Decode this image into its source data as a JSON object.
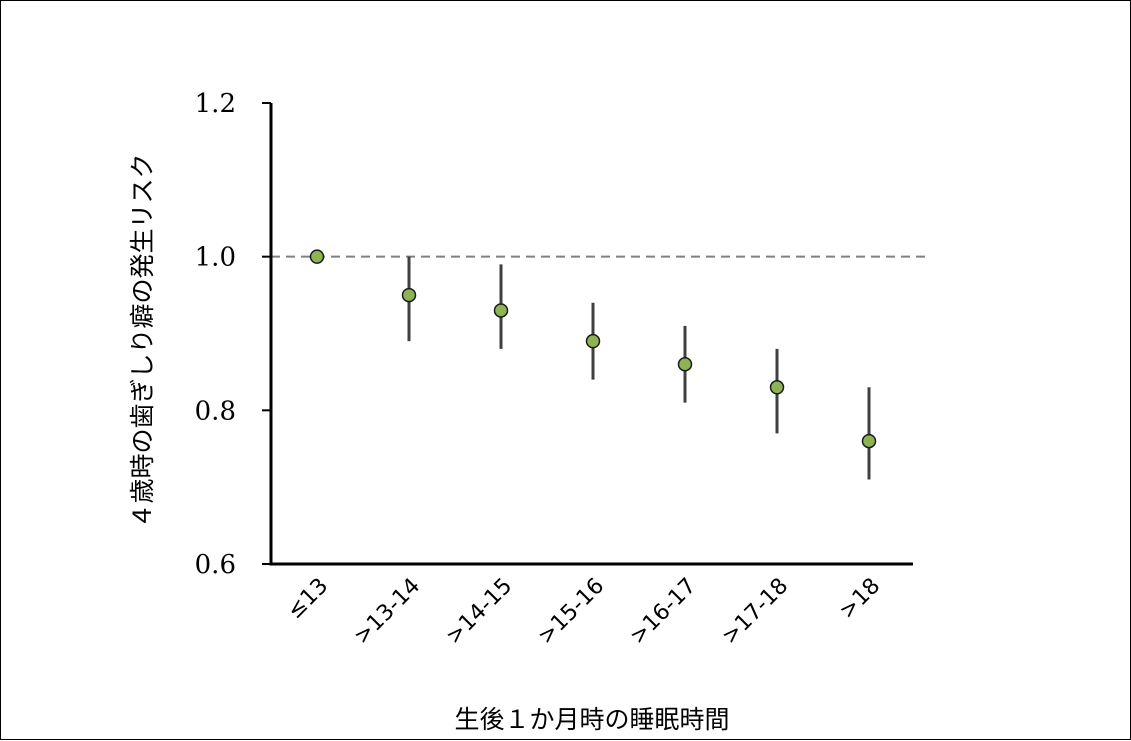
{
  "chart_data": {
    "type": "scatter",
    "xlabel": "生後１か月時の睡眠時間",
    "ylabel": "４歳時の歯ぎしり癖の発生リスク",
    "categories": [
      "≤13",
      ">13-14",
      ">14-15",
      ">15-16",
      ">16-17",
      ">17-18",
      ">18"
    ],
    "values": [
      1.0,
      0.95,
      0.93,
      0.89,
      0.86,
      0.83,
      0.76
    ],
    "ci_lower": [
      1.0,
      0.89,
      0.88,
      0.84,
      0.81,
      0.77,
      0.71
    ],
    "ci_upper": [
      1.0,
      1.0,
      0.99,
      0.94,
      0.91,
      0.88,
      0.83
    ],
    "reference_line": 1.0,
    "ylim": [
      0.6,
      1.2
    ],
    "yticks": [
      0.6,
      0.8,
      1.0,
      1.2
    ],
    "ytick_labels": [
      "0.6",
      "0.8",
      "1.0",
      "1.2"
    ],
    "grid": false,
    "colors": {
      "marker_fill": "#8db353",
      "marker_edge": "#1a1a1a",
      "error_bar": "#404040",
      "reference_line": "#808080",
      "axis": "#000000"
    }
  }
}
